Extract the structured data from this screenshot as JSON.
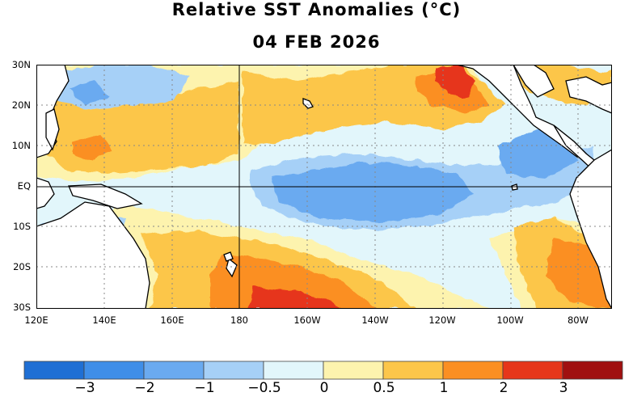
{
  "title": "Relative SST Anomalies (°C)",
  "date": "04 FEB 2026",
  "map": {
    "lat_labels": [
      "30N",
      "20N",
      "10N",
      "EQ",
      "10S",
      "20S",
      "30S"
    ],
    "lon_labels": [
      "120E",
      "140E",
      "160E",
      "180",
      "160W",
      "140W",
      "120W",
      "100W",
      "80W"
    ]
  },
  "legend": {
    "colors": [
      "#1f6fd4",
      "#3f8ee8",
      "#6aaaf0",
      "#a6d0f7",
      "#e2f6fb",
      "#fdf3ae",
      "#fcc64a",
      "#fb8f22",
      "#e6361a",
      "#a01010"
    ],
    "labels": [
      "−3",
      "−2",
      "−1",
      "−0.5",
      "0",
      "0.5",
      "1",
      "2",
      "3"
    ]
  }
}
